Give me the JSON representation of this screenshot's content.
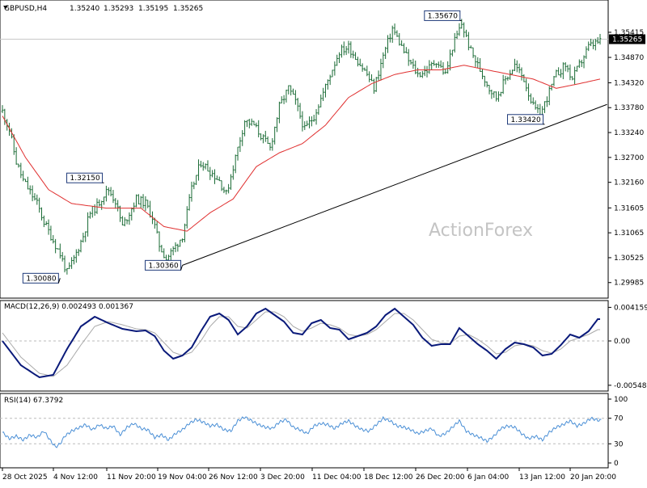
{
  "header": {
    "symbol": "GBPUSD,H4",
    "open": "1.35240",
    "high": "1.35293",
    "low": "1.35195",
    "close": "1.35265"
  },
  "watermark": "ActionForex",
  "chart_data": [
    {
      "type": "candlestick",
      "name": "GBPUSD,H4",
      "ylim": [
        1.297,
        1.358
      ],
      "yticks": [
        "1.35415",
        "1.34870",
        "1.34320",
        "1.33780",
        "1.33240",
        "1.32700",
        "1.32160",
        "1.31605",
        "1.31065",
        "1.30525",
        "1.29985"
      ],
      "current_price": "1.35265",
      "xticks": [
        "28 Oct 2025",
        "4 Nov 12:00",
        "11 Nov 20:00",
        "19 Nov 04:00",
        "26 Nov 12:00",
        "3 Dec 20:00",
        "11 Dec 04:00",
        "18 Dec 12:00",
        "26 Dec 20:00",
        "6 Jan 04:00",
        "13 Jan 12:00",
        "20 Jan 20:00"
      ],
      "price_path": [
        [
          0,
          1.337
        ],
        [
          3,
          1.333
        ],
        [
          6,
          1.326
        ],
        [
          9,
          1.322
        ],
        [
          12,
          1.3195
        ],
        [
          15,
          1.317
        ],
        [
          18,
          1.313
        ],
        [
          22,
          1.309
        ],
        [
          25,
          1.306
        ],
        [
          28,
          1.302
        ],
        [
          31,
          1.305
        ],
        [
          35,
          1.31
        ],
        [
          38,
          1.315
        ],
        [
          41,
          1.3165
        ],
        [
          44,
          1.319
        ],
        [
          46,
          1.32
        ],
        [
          49,
          1.3175
        ],
        [
          52,
          1.312
        ],
        [
          55,
          1.315
        ],
        [
          58,
          1.318
        ],
        [
          62,
          1.317
        ],
        [
          65,
          1.314
        ],
        [
          68,
          1.308
        ],
        [
          71,
          1.305
        ],
        [
          74,
          1.307
        ],
        [
          78,
          1.31
        ],
        [
          82,
          1.32
        ],
        [
          86,
          1.326
        ],
        [
          90,
          1.324
        ],
        [
          94,
          1.322
        ],
        [
          97,
          1.319
        ],
        [
          101,
          1.327
        ],
        [
          105,
          1.335
        ],
        [
          109,
          1.334
        ],
        [
          113,
          1.331
        ],
        [
          116,
          1.329
        ],
        [
          120,
          1.338
        ],
        [
          124,
          1.342
        ],
        [
          127,
          1.339
        ],
        [
          131,
          1.333
        ],
        [
          135,
          1.336
        ],
        [
          139,
          1.341
        ],
        [
          142,
          1.345
        ],
        [
          146,
          1.35
        ],
        [
          150,
          1.351
        ],
        [
          154,
          1.348
        ],
        [
          158,
          1.345
        ],
        [
          161,
          1.342
        ],
        [
          165,
          1.349
        ],
        [
          169,
          1.355
        ],
        [
          172,
          1.352
        ],
        [
          176,
          1.348
        ],
        [
          180,
          1.345
        ],
        [
          184,
          1.346
        ],
        [
          188,
          1.348
        ],
        [
          192,
          1.345
        ],
        [
          195,
          1.351
        ],
        [
          199,
          1.356
        ],
        [
          203,
          1.35
        ],
        [
          207,
          1.346
        ],
        [
          211,
          1.342
        ],
        [
          214,
          1.34
        ],
        [
          218,
          1.344
        ],
        [
          222,
          1.347
        ],
        [
          226,
          1.344
        ],
        [
          230,
          1.338
        ],
        [
          233,
          1.336
        ],
        [
          236,
          1.34
        ],
        [
          240,
          1.345
        ],
        [
          244,
          1.347
        ],
        [
          247,
          1.344
        ],
        [
          251,
          1.348
        ],
        [
          254,
          1.351
        ],
        [
          258,
          1.352
        ]
      ],
      "candle_count": 260,
      "moving_average": {
        "color": "#e03030",
        "path": [
          [
            0,
            1.336
          ],
          [
            10,
            1.327
          ],
          [
            20,
            1.32
          ],
          [
            30,
            1.317
          ],
          [
            45,
            1.316
          ],
          [
            60,
            1.316
          ],
          [
            70,
            1.312
          ],
          [
            80,
            1.311
          ],
          [
            90,
            1.315
          ],
          [
            100,
            1.318
          ],
          [
            110,
            1.325
          ],
          [
            120,
            1.328
          ],
          [
            130,
            1.33
          ],
          [
            140,
            1.334
          ],
          [
            150,
            1.34
          ],
          [
            160,
            1.343
          ],
          [
            170,
            1.345
          ],
          [
            180,
            1.346
          ],
          [
            190,
            1.346
          ],
          [
            200,
            1.347
          ],
          [
            210,
            1.346
          ],
          [
            220,
            1.345
          ],
          [
            230,
            1.344
          ],
          [
            240,
            1.342
          ],
          [
            250,
            1.343
          ],
          [
            259,
            1.344
          ]
        ]
      },
      "trendline": {
        "color": "#000000",
        "points": [
          [
            78,
            1.3036
          ],
          [
            262,
            1.3385
          ]
        ]
      },
      "annotations": [
        {
          "label": "1.30080",
          "x": 25,
          "y": 1.3008
        },
        {
          "label": "1.32150",
          "x": 44,
          "y": 1.3215
        },
        {
          "label": "1.30360",
          "x": 78,
          "y": 1.3036
        },
        {
          "label": "1.35670",
          "x": 199,
          "y": 1.3567
        },
        {
          "label": "1.33420",
          "x": 235,
          "y": 1.3342
        }
      ]
    },
    {
      "type": "line",
      "name": "MACD(12,26,9) 0.002493 0.001367",
      "ylim": [
        -0.006,
        0.0046
      ],
      "yticks": [
        "0.004159",
        "0.00",
        "-0.005485"
      ],
      "macd": [
        [
          0,
          0.0
        ],
        [
          8,
          -0.003
        ],
        [
          16,
          -0.0045
        ],
        [
          22,
          -0.0042
        ],
        [
          28,
          -0.001
        ],
        [
          34,
          0.0018
        ],
        [
          40,
          0.003
        ],
        [
          46,
          0.0022
        ],
        [
          52,
          0.0015
        ],
        [
          58,
          0.0012
        ],
        [
          62,
          0.0013
        ],
        [
          66,
          0.0006
        ],
        [
          70,
          -0.0012
        ],
        [
          74,
          -0.0022
        ],
        [
          78,
          -0.0018
        ],
        [
          82,
          -0.0008
        ],
        [
          86,
          0.0012
        ],
        [
          90,
          0.003
        ],
        [
          94,
          0.0034
        ],
        [
          98,
          0.0026
        ],
        [
          102,
          0.0008
        ],
        [
          106,
          0.0018
        ],
        [
          110,
          0.0034
        ],
        [
          114,
          0.004
        ],
        [
          118,
          0.0032
        ],
        [
          122,
          0.0024
        ],
        [
          126,
          0.001
        ],
        [
          130,
          0.0008
        ],
        [
          134,
          0.0022
        ],
        [
          138,
          0.0026
        ],
        [
          142,
          0.0016
        ],
        [
          146,
          0.0014
        ],
        [
          150,
          0.0002
        ],
        [
          154,
          0.0006
        ],
        [
          158,
          0.001
        ],
        [
          162,
          0.0018
        ],
        [
          166,
          0.0032
        ],
        [
          170,
          0.004
        ],
        [
          174,
          0.003
        ],
        [
          178,
          0.002
        ],
        [
          182,
          0.0004
        ],
        [
          186,
          -0.0006
        ],
        [
          190,
          -0.0004
        ],
        [
          194,
          -0.0004
        ],
        [
          198,
          0.0016
        ],
        [
          202,
          0.0006
        ],
        [
          206,
          -0.0004
        ],
        [
          210,
          -0.0012
        ],
        [
          214,
          -0.0022
        ],
        [
          218,
          -0.001
        ],
        [
          222,
          -0.0002
        ],
        [
          226,
          -0.0004
        ],
        [
          230,
          -0.0008
        ],
        [
          234,
          -0.0018
        ],
        [
          238,
          -0.0016
        ],
        [
          242,
          -0.0005
        ],
        [
          246,
          0.0008
        ],
        [
          250,
          0.0004
        ],
        [
          254,
          0.0012
        ],
        [
          258,
          0.0027
        ]
      ],
      "signal": [
        [
          0,
          0.001
        ],
        [
          8,
          -0.002
        ],
        [
          16,
          -0.004
        ],
        [
          22,
          -0.0044
        ],
        [
          28,
          -0.003
        ],
        [
          34,
          -0.0005
        ],
        [
          40,
          0.0018
        ],
        [
          46,
          0.0024
        ],
        [
          52,
          0.002
        ],
        [
          58,
          0.0015
        ],
        [
          62,
          0.0014
        ],
        [
          66,
          0.001
        ],
        [
          70,
          -0.0002
        ],
        [
          74,
          -0.0014
        ],
        [
          78,
          -0.0018
        ],
        [
          82,
          -0.0014
        ],
        [
          86,
          0.0
        ],
        [
          90,
          0.0018
        ],
        [
          94,
          0.003
        ],
        [
          98,
          0.003
        ],
        [
          102,
          0.0018
        ],
        [
          106,
          0.0016
        ],
        [
          110,
          0.0026
        ],
        [
          114,
          0.0036
        ],
        [
          118,
          0.0036
        ],
        [
          122,
          0.003
        ],
        [
          126,
          0.0018
        ],
        [
          130,
          0.0012
        ],
        [
          134,
          0.0016
        ],
        [
          138,
          0.0022
        ],
        [
          142,
          0.002
        ],
        [
          146,
          0.0016
        ],
        [
          150,
          0.0008
        ],
        [
          154,
          0.0006
        ],
        [
          158,
          0.0008
        ],
        [
          162,
          0.0014
        ],
        [
          166,
          0.0024
        ],
        [
          170,
          0.0034
        ],
        [
          174,
          0.0034
        ],
        [
          178,
          0.0026
        ],
        [
          182,
          0.0014
        ],
        [
          186,
          0.0002
        ],
        [
          190,
          -0.0002
        ],
        [
          194,
          -0.0003
        ],
        [
          198,
          0.0006
        ],
        [
          202,
          0.0008
        ],
        [
          206,
          0.0002
        ],
        [
          210,
          -0.0006
        ],
        [
          214,
          -0.0016
        ],
        [
          218,
          -0.0014
        ],
        [
          222,
          -0.0006
        ],
        [
          226,
          -0.0004
        ],
        [
          230,
          -0.0006
        ],
        [
          234,
          -0.0012
        ],
        [
          238,
          -0.0015
        ],
        [
          242,
          -0.001
        ],
        [
          246,
          0.0
        ],
        [
          250,
          0.0004
        ],
        [
          254,
          0.0008
        ],
        [
          258,
          0.0014
        ]
      ],
      "macd_color": "#0a1a7a",
      "signal_color": "#aaaaaa"
    },
    {
      "type": "line",
      "name": "RSI(14) 67.3792",
      "ylim": [
        0,
        100
      ],
      "yticks": [
        "100",
        "70",
        "30",
        "0"
      ],
      "levels": [
        70,
        30
      ],
      "rsi": [
        [
          0,
          48
        ],
        [
          3,
          38
        ],
        [
          6,
          42
        ],
        [
          9,
          36
        ],
        [
          12,
          44
        ],
        [
          15,
          40
        ],
        [
          18,
          50
        ],
        [
          21,
          34
        ],
        [
          23,
          25
        ],
        [
          25,
          30
        ],
        [
          27,
          42
        ],
        [
          30,
          50
        ],
        [
          33,
          55
        ],
        [
          36,
          60
        ],
        [
          39,
          52
        ],
        [
          42,
          60
        ],
        [
          45,
          54
        ],
        [
          48,
          58
        ],
        [
          51,
          44
        ],
        [
          54,
          56
        ],
        [
          57,
          62
        ],
        [
          60,
          54
        ],
        [
          63,
          52
        ],
        [
          66,
          40
        ],
        [
          69,
          44
        ],
        [
          72,
          36
        ],
        [
          75,
          46
        ],
        [
          78,
          52
        ],
        [
          81,
          62
        ],
        [
          84,
          68
        ],
        [
          87,
          64
        ],
        [
          90,
          58
        ],
        [
          93,
          60
        ],
        [
          96,
          52
        ],
        [
          99,
          50
        ],
        [
          102,
          66
        ],
        [
          105,
          72
        ],
        [
          108,
          66
        ],
        [
          111,
          60
        ],
        [
          114,
          56
        ],
        [
          117,
          54
        ],
        [
          120,
          64
        ],
        [
          123,
          68
        ],
        [
          126,
          56
        ],
        [
          129,
          52
        ],
        [
          132,
          46
        ],
        [
          135,
          58
        ],
        [
          138,
          62
        ],
        [
          141,
          60
        ],
        [
          144,
          54
        ],
        [
          147,
          62
        ],
        [
          150,
          66
        ],
        [
          153,
          58
        ],
        [
          156,
          52
        ],
        [
          159,
          50
        ],
        [
          162,
          60
        ],
        [
          165,
          70
        ],
        [
          168,
          66
        ],
        [
          171,
          58
        ],
        [
          174,
          56
        ],
        [
          177,
          52
        ],
        [
          180,
          46
        ],
        [
          183,
          50
        ],
        [
          186,
          54
        ],
        [
          189,
          42
        ],
        [
          192,
          46
        ],
        [
          195,
          56
        ],
        [
          198,
          66
        ],
        [
          201,
          50
        ],
        [
          204,
          44
        ],
        [
          207,
          40
        ],
        [
          210,
          34
        ],
        [
          213,
          42
        ],
        [
          216,
          54
        ],
        [
          219,
          58
        ],
        [
          222,
          56
        ],
        [
          225,
          46
        ],
        [
          228,
          38
        ],
        [
          231,
          42
        ],
        [
          234,
          36
        ],
        [
          237,
          48
        ],
        [
          240,
          56
        ],
        [
          243,
          60
        ],
        [
          246,
          66
        ],
        [
          249,
          58
        ],
        [
          252,
          62
        ],
        [
          255,
          70
        ],
        [
          258,
          67
        ]
      ],
      "rsi_color": "#4a8fd6"
    }
  ]
}
